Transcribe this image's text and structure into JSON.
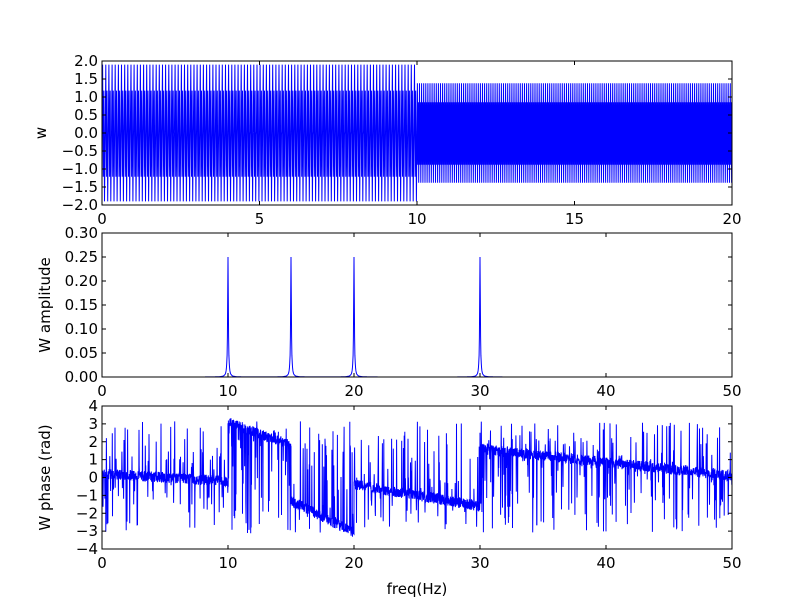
{
  "chart_data": [
    {
      "type": "line",
      "title": "",
      "xlabel": "",
      "ylabel": "w",
      "xlim": [
        0,
        20
      ],
      "ylim": [
        -2.0,
        2.0
      ],
      "xticks": [
        0,
        5,
        10,
        15,
        20
      ],
      "xticklabels": [
        "0",
        "5",
        "10",
        "15",
        "20"
      ],
      "yticks": [
        -2.0,
        -1.5,
        -1.0,
        -0.5,
        0.0,
        0.5,
        1.0,
        1.5,
        2.0
      ],
      "yticklabels": [
        "−2.0",
        "−1.5",
        "−1.0",
        "−0.5",
        "0.0",
        "0.5",
        "1.0",
        "1.5",
        "2.0"
      ],
      "grid": false,
      "color": "#0000ff",
      "series": [
        {
          "segments": [
            {
              "x_start": 0,
              "x_end": 10,
              "components_hz": [
                10,
                30
              ],
              "amplitudes": [
                1.0,
                1.0
              ],
              "ymin": -1.9,
              "ymax": 1.9
            },
            {
              "x_start": 10,
              "x_end": 20,
              "components_hz": [
                15,
                20
              ],
              "amplitudes": [
                1.0,
                1.0
              ],
              "ymin": -1.38,
              "ymax": 1.38
            }
          ]
        }
      ]
    },
    {
      "type": "line",
      "title": "",
      "xlabel": "",
      "ylabel": "W amplitude",
      "xlim": [
        0,
        50
      ],
      "ylim": [
        0.0,
        0.3
      ],
      "xticks": [
        0,
        10,
        20,
        30,
        40,
        50
      ],
      "xticklabels": [
        "0",
        "10",
        "20",
        "30",
        "40",
        "50"
      ],
      "yticks": [
        0.0,
        0.05,
        0.1,
        0.15,
        0.2,
        0.25,
        0.3
      ],
      "yticklabels": [
        "0.00",
        "0.05",
        "0.10",
        "0.15",
        "0.20",
        "0.25",
        "0.30"
      ],
      "grid": false,
      "color": "#0000ff",
      "series": [
        {
          "peaks": [
            {
              "x": 10,
              "y": 0.25
            },
            {
              "x": 15,
              "y": 0.25
            },
            {
              "x": 20,
              "y": 0.25
            },
            {
              "x": 30,
              "y": 0.25
            }
          ],
          "baseline": 0.0
        }
      ]
    },
    {
      "type": "line",
      "title": "",
      "xlabel": "freq(Hz)",
      "ylabel": "W phase (rad)",
      "xlim": [
        0,
        50
      ],
      "ylim": [
        -4,
        4
      ],
      "xticks": [
        0,
        10,
        20,
        30,
        40,
        50
      ],
      "xticklabels": [
        "0",
        "10",
        "20",
        "30",
        "40",
        "50"
      ],
      "yticks": [
        -4,
        -3,
        -2,
        -1,
        0,
        1,
        2,
        3,
        4
      ],
      "yticklabels": [
        "−4",
        "−3",
        "−2",
        "−1",
        "0",
        "1",
        "2",
        "3",
        "4"
      ],
      "grid": false,
      "color": "#0000ff",
      "series": [
        {
          "trend_segments": [
            {
              "x_start": 0,
              "x_end": 10,
              "y_start": 0.2,
              "y_end": -0.2
            },
            {
              "x_start": 10,
              "x_end": 15,
              "y_start": 3.1,
              "y_end": 1.8
            },
            {
              "x_start": 15,
              "x_end": 20,
              "y_start": -1.3,
              "y_end": -3.1
            },
            {
              "x_start": 20,
              "x_end": 30,
              "y_start": -0.4,
              "y_end": -1.6
            },
            {
              "x_start": 30,
              "x_end": 50,
              "y_start": 1.6,
              "y_end": 0.1
            }
          ],
          "noise_range": [
            -3.14,
            3.14
          ]
        }
      ]
    }
  ]
}
